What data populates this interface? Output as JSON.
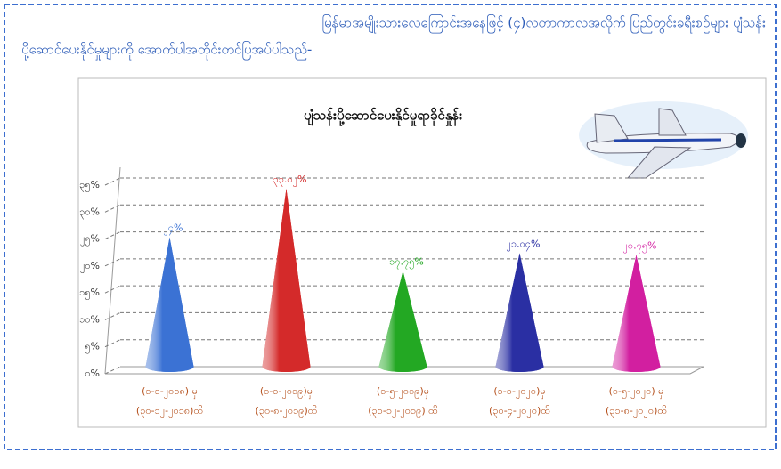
{
  "header": {
    "lines": [
      "မြန်မာအမျိုးသားလေကြောင်းအနေဖြင့် (၄)လတာကာလအလိုက် ပြည်တွင်းခရီးစဉ်များ ပျံသန်း",
      "ပို့ဆောင်ပေးနိုင်မှုများကို အောက်ပါအတိုင်းတင်ပြအပ်ပါသည်-"
    ]
  },
  "chart_data": {
    "type": "bar",
    "title": "ပျံသန်းပို့ဆောင်ပေးနိုင်မှုရာခိုင်နှုန်း",
    "categories": [
      [
        "(၁-၁-၂၀၁၈) မှ",
        "(၃၀-၁၂-၂၀၁၈)ထိ"
      ],
      [
        "(၁-၁-၂၀၁၉)မှ",
        "(၃၀-၈-၂၀၁၉)ထိ"
      ],
      [
        "(၁-၅-၂၀၁၉)မှ",
        "(၃၁-၁၂-၂၀၁၉) ထိ"
      ],
      [
        "(၁-၁-၂၀၂၀)မှ",
        "(၃၀-၄-၂၀၂၀)ထိ"
      ],
      [
        "(၁-၅-၂၀၂၀) မှ",
        "(၃၁-၈-၂၀၂၀)ထိ"
      ]
    ],
    "values": [
      24,
      33.02,
      17.75,
      21.04,
      20.75
    ],
    "value_labels": [
      "၂၄%",
      "၃၃.၀၂%",
      "၁၇.၇၅%",
      "၂၁.၀၄%",
      "၂၀.၇၅%"
    ],
    "colors": [
      "#3b72d4",
      "#d42a2a",
      "#23a823",
      "#2a2fa3",
      "#d21fa0"
    ],
    "ylim": [
      0,
      35
    ],
    "yticks": [
      {
        "value": 0,
        "label": "၀%"
      },
      {
        "value": 5,
        "label": "၅%"
      },
      {
        "value": 10,
        "label": "၁၀%"
      },
      {
        "value": 15,
        "label": "၁၅%"
      },
      {
        "value": 20,
        "label": "၂၀%"
      },
      {
        "value": 25,
        "label": "၂၅%"
      },
      {
        "value": 30,
        "label": "၃၀%"
      },
      {
        "value": 35,
        "label": "၃၅%"
      }
    ],
    "grid": true
  }
}
